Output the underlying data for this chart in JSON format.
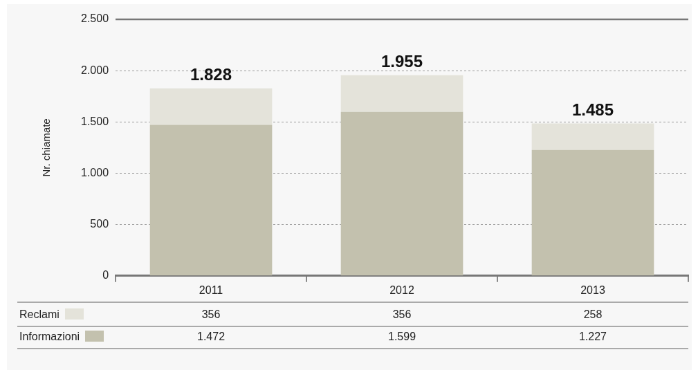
{
  "chart_data": {
    "type": "bar",
    "stacked": true,
    "ylabel": "Nr. chiamate",
    "categories": [
      "2011",
      "2012",
      "2013"
    ],
    "series": [
      {
        "name": "Informazioni",
        "color": "#c3c1ae",
        "values": [
          1472,
          1599,
          1227
        ],
        "value_labels": [
          "1.472",
          "1.599",
          "1.227"
        ]
      },
      {
        "name": "Reclami",
        "color": "#e4e3da",
        "values": [
          356,
          356,
          258
        ],
        "value_labels": [
          "356",
          "356",
          "258"
        ]
      }
    ],
    "totals": [
      "1.828",
      "1.955",
      "1.485"
    ],
    "ylim": [
      0,
      2500
    ],
    "yticks": [
      {
        "value": 0,
        "label": "0"
      },
      {
        "value": 500,
        "label": "500"
      },
      {
        "value": 1000,
        "label": "1.000"
      },
      {
        "value": 1500,
        "label": "1.500"
      },
      {
        "value": 2000,
        "label": "2.000"
      },
      {
        "value": 2500,
        "label": "2.500"
      }
    ],
    "grid": "y",
    "legend": "bottom"
  }
}
